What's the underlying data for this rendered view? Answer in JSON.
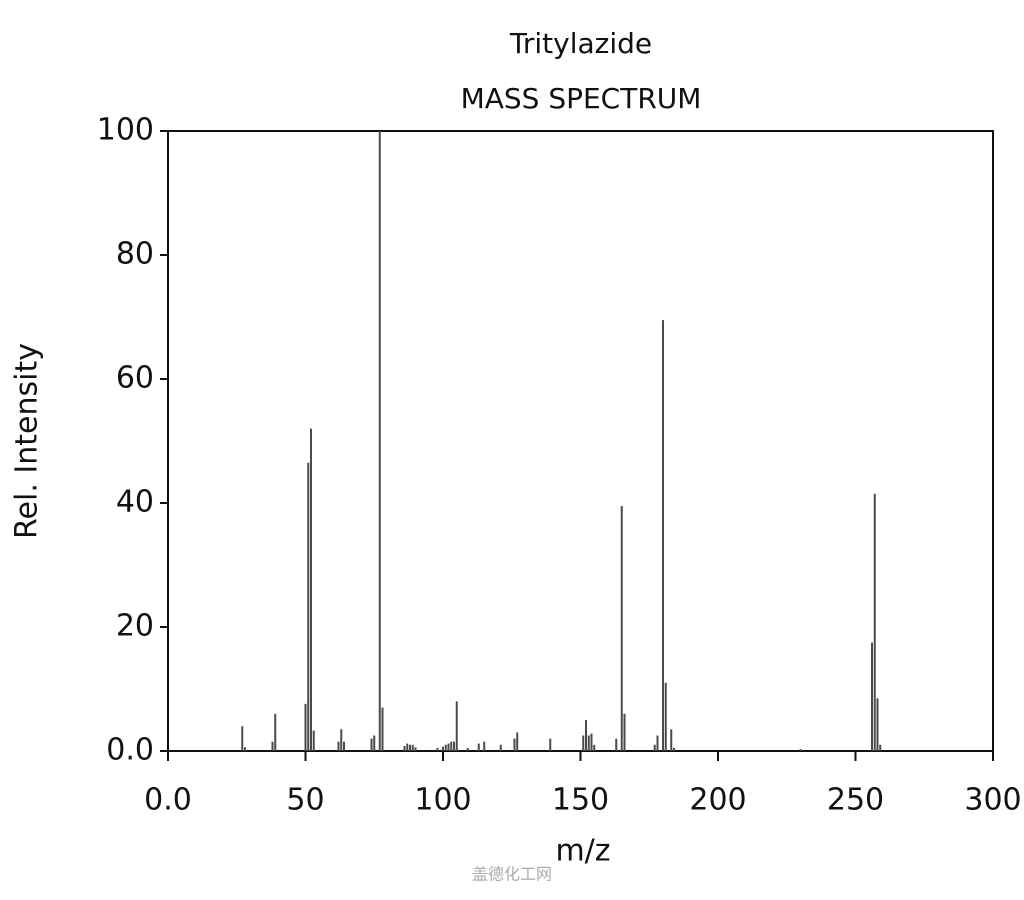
{
  "chart_data": {
    "type": "bar",
    "title": "Tritylazide",
    "subtitle": "MASS SPECTRUM",
    "x_label": "m/z",
    "y_label": "Rel. Intensity",
    "watermark": "盖德化工网",
    "color": "#4a4a4a",
    "x": [
      27,
      28,
      38,
      39,
      50,
      51,
      52,
      53,
      62,
      63,
      64,
      74,
      75,
      77,
      78,
      86,
      87,
      88,
      89,
      90,
      98,
      100,
      101,
      102,
      103,
      104,
      105,
      109,
      113,
      115,
      121,
      126,
      127,
      139,
      151,
      152,
      153,
      154,
      155,
      163,
      165,
      166,
      177,
      178,
      180,
      181,
      183,
      184,
      230,
      256,
      257,
      258,
      259
    ],
    "values": [
      4,
      0.6,
      1.5,
      6,
      7.6,
      46.5,
      52,
      3.3,
      1.5,
      3.5,
      1.5,
      2,
      2.5,
      100,
      7,
      0.8,
      1.2,
      1,
      1,
      0.6,
      0.5,
      0.7,
      1,
      1.2,
      1.5,
      1.5,
      8,
      0.5,
      1.2,
      1.5,
      1,
      2,
      3,
      2,
      2.5,
      5,
      2.5,
      2.8,
      1,
      2,
      39.5,
      6,
      1,
      2.5,
      69.5,
      11,
      3.5,
      0.5,
      0.3,
      17.5,
      41.5,
      8.5,
      1
    ],
    "xlim": [
      0,
      300
    ],
    "xticks": [
      {
        "value": 0,
        "label": "0.0"
      },
      50,
      100,
      150,
      200,
      250,
      300
    ],
    "ylim": [
      0,
      100
    ],
    "yticks": [
      {
        "value": 0,
        "label": "0.0"
      },
      20,
      40,
      60,
      80,
      100
    ]
  }
}
